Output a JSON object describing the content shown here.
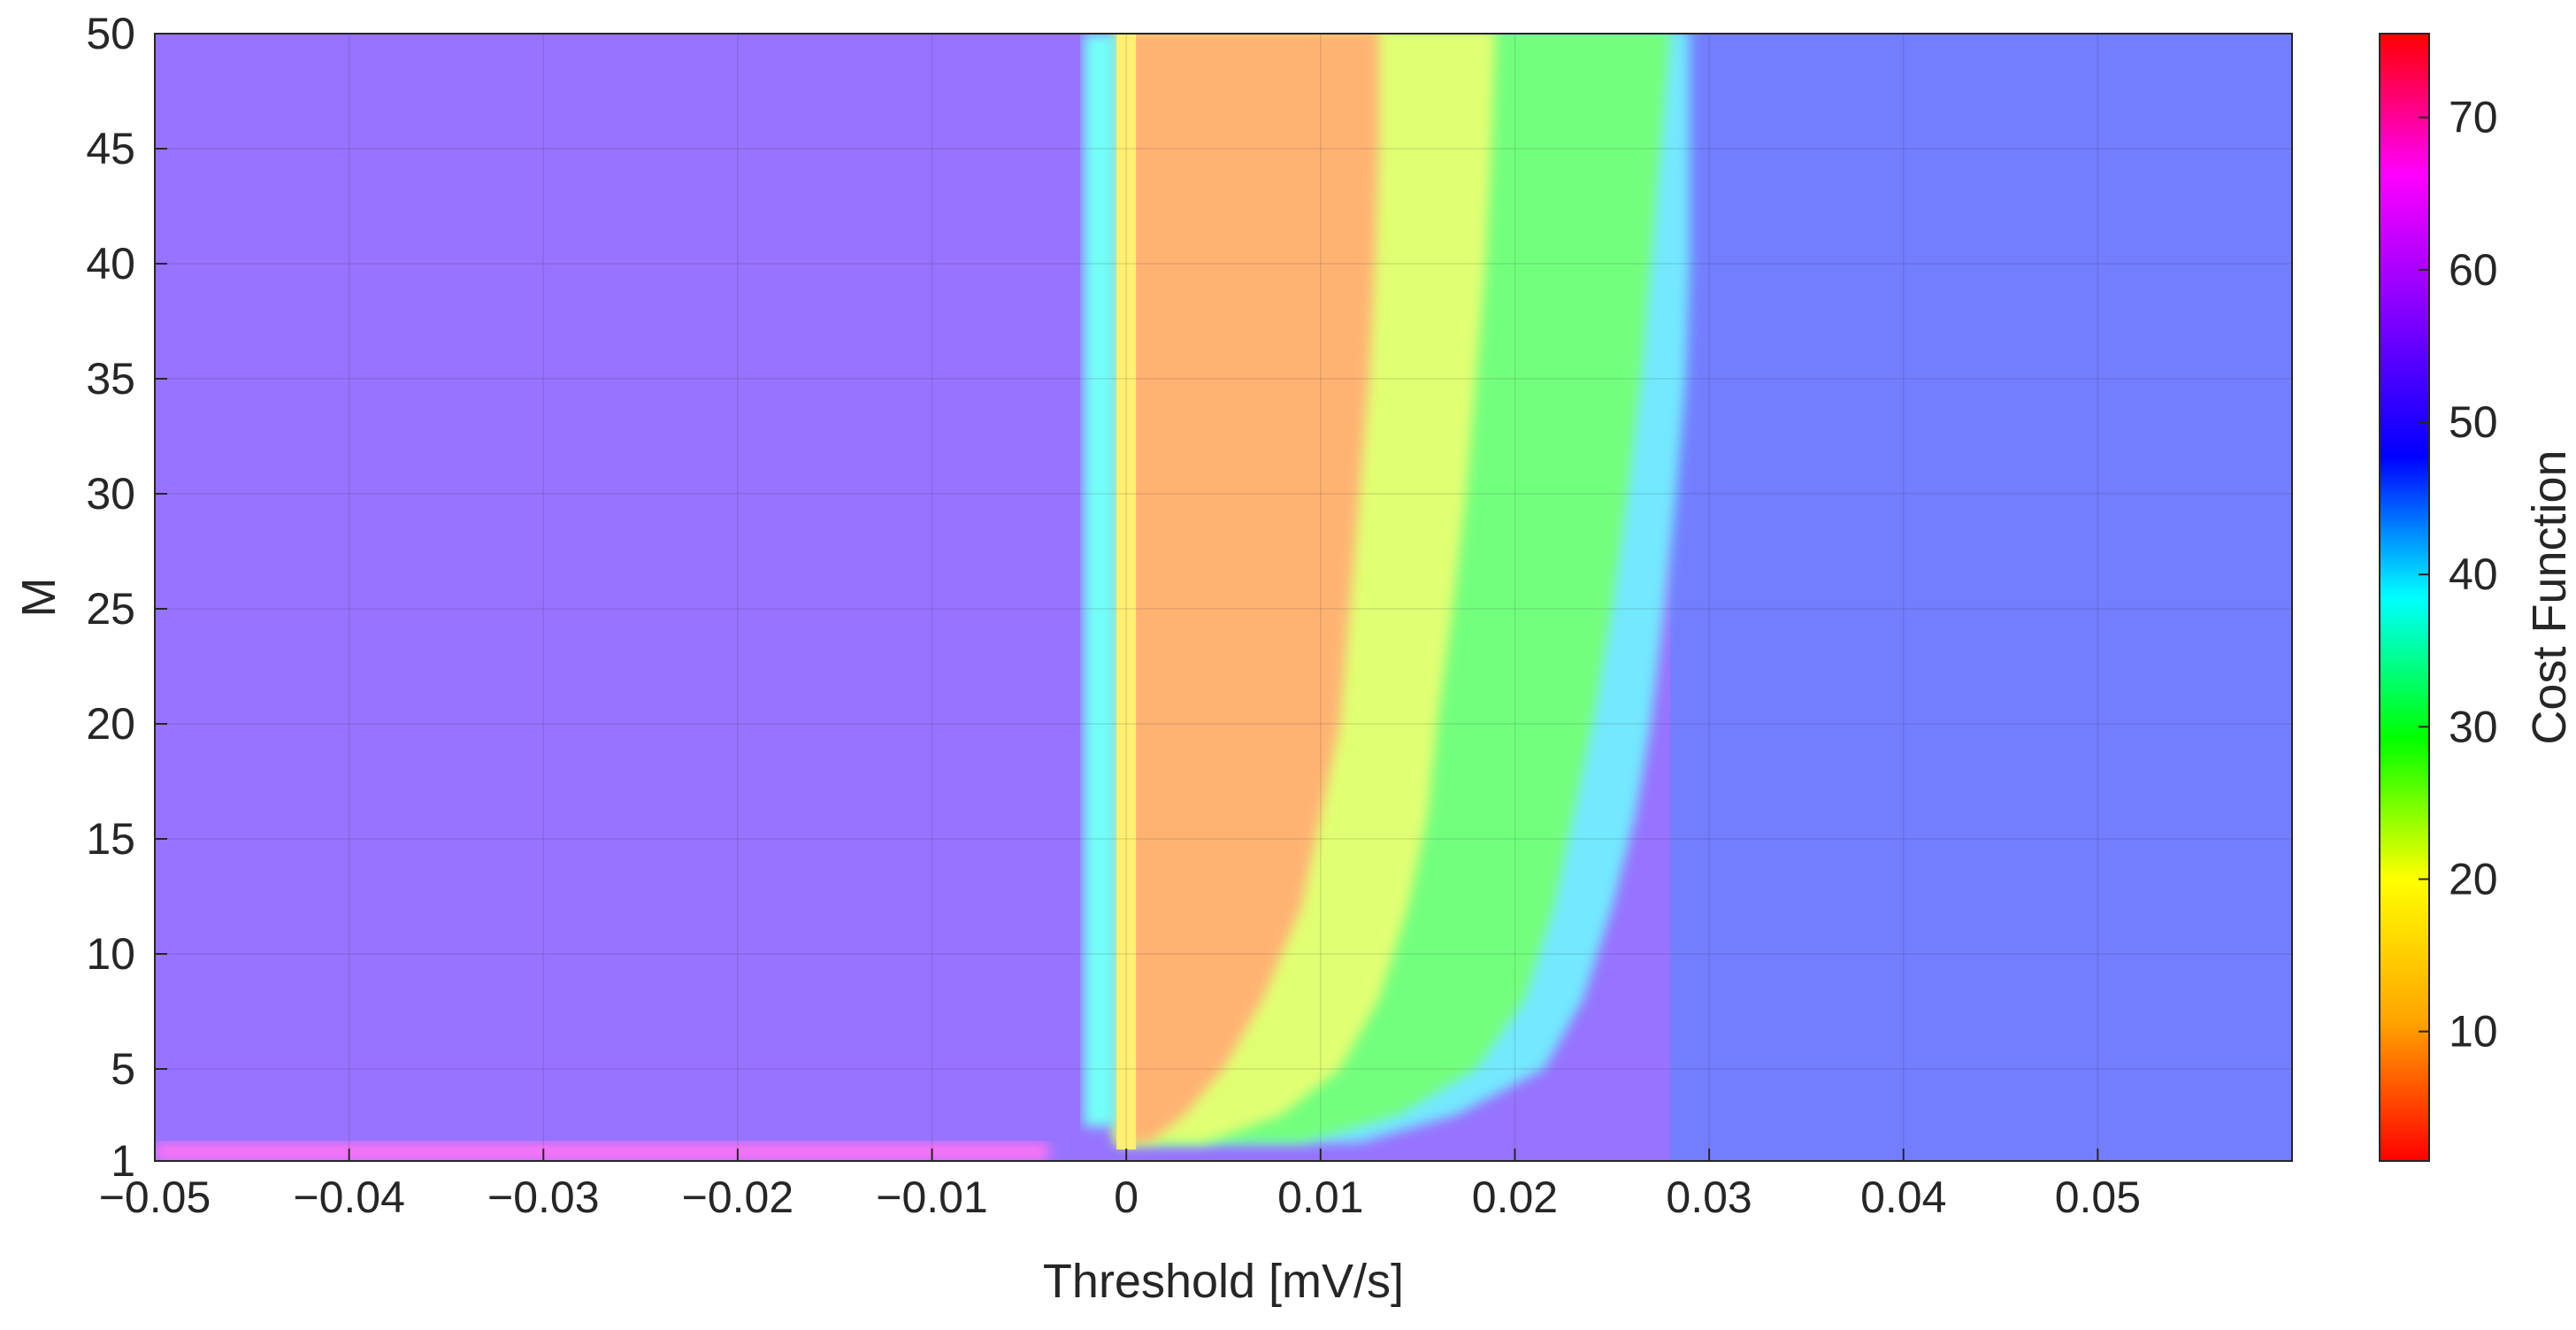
{
  "chart_data": {
    "type": "heatmap",
    "title": "",
    "xlabel": "Threshold [mV/s]",
    "ylabel": "M",
    "colorbar_label": "Cost Function",
    "xlim": [
      -0.05,
      0.06
    ],
    "ylim": [
      1,
      50
    ],
    "clim": [
      1.5,
      75.5
    ],
    "x_ticks": [
      -0.05,
      -0.04,
      -0.03,
      -0.02,
      -0.01,
      0,
      0.01,
      0.02,
      0.03,
      0.04,
      0.05
    ],
    "x_tick_labels": [
      "−0.05",
      "−0.04",
      "−0.03",
      "−0.02",
      "−0.01",
      "0",
      "0.01",
      "0.02",
      "0.03",
      "0.04",
      "0.05"
    ],
    "y_ticks": [
      1,
      5,
      10,
      15,
      20,
      25,
      30,
      35,
      40,
      45,
      50
    ],
    "y_tick_labels": [
      "1",
      "5",
      "10",
      "15",
      "20",
      "25",
      "30",
      "35",
      "40",
      "45",
      "50"
    ],
    "colorbar_ticks": [
      10,
      20,
      30,
      40,
      50,
      60,
      70
    ],
    "colorbar_tick_labels": [
      "10",
      "20",
      "30",
      "40",
      "50",
      "60",
      "70"
    ],
    "colormap": [
      "#ff0000",
      "#ffa500",
      "#ffff00",
      "#00ff00",
      "#00ffff",
      "#0000ff",
      "#8000ff",
      "#ff00ff",
      "#ff0000"
    ],
    "grid": true,
    "shading_alpha": 0.55,
    "regions": [
      {
        "x": [
          -0.05,
          -0.0022
        ],
        "M": [
          1.5,
          50
        ],
        "value": 52.5
      },
      {
        "x": [
          -0.05,
          -0.004
        ],
        "M": [
          1,
          1.8
        ],
        "value": 67
      },
      {
        "x": [
          -0.0022,
          -0.0005
        ],
        "M": [
          2.5,
          50
        ],
        "value": 38
      },
      {
        "x": [
          -0.0005,
          0.0005
        ],
        "M": [
          1.5,
          50
        ],
        "value": 17
      },
      {
        "x": [
          0.0005,
          0.011
        ],
        "M": [
          1.5,
          50
        ],
        "value": 8
      },
      {
        "x": [
          0.011,
          0.014
        ],
        "M": [
          3,
          50
        ],
        "value": 15
      },
      {
        "x": [
          0.014,
          0.019
        ],
        "M": [
          4,
          50
        ],
        "value": 22
      },
      {
        "x": [
          0.019,
          0.028
        ],
        "M": [
          6,
          50
        ],
        "value": 30
      },
      {
        "x": [
          0.028,
          0.06
        ],
        "M": [
          1,
          50
        ],
        "value": 47
      }
    ],
    "boundary_curves": {
      "M": [
        1.8,
        3,
        5,
        8,
        12,
        16,
        20,
        25,
        30,
        35,
        40,
        45,
        50
      ],
      "orange_yellow": [
        0.0012,
        0.003,
        0.005,
        0.007,
        0.009,
        0.01,
        0.011,
        0.0115,
        0.012,
        0.0125,
        0.0128,
        0.013,
        0.013
      ],
      "yellow_green": [
        0.004,
        0.008,
        0.011,
        0.013,
        0.0145,
        0.0155,
        0.016,
        0.0168,
        0.0175,
        0.018,
        0.0185,
        0.0188,
        0.019
      ],
      "green_cyan": [
        0.009,
        0.014,
        0.018,
        0.0205,
        0.022,
        0.023,
        0.024,
        0.025,
        0.0258,
        0.0265,
        0.027,
        0.0275,
        0.028
      ],
      "cyan_blue": [
        0.012,
        0.017,
        0.0215,
        0.0235,
        0.025,
        0.0262,
        0.027,
        0.0277,
        0.0283,
        0.0288,
        0.029,
        0.029,
        0.029
      ]
    }
  }
}
